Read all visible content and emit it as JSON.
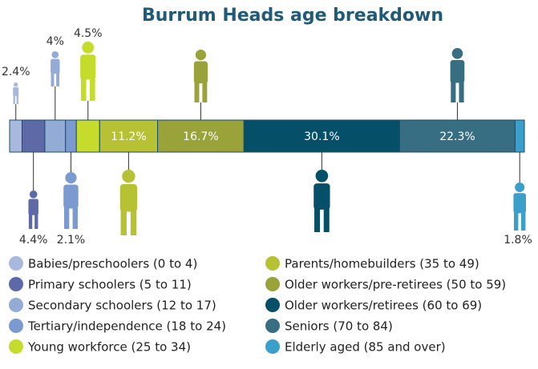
{
  "chart_data": {
    "type": "stacked_bar",
    "title": "Burrum Heads age breakdown",
    "categories": [
      "Babies/preschoolers (0 to 4)",
      "Primary schoolers (5 to 11)",
      "Secondary schoolers (12 to 17)",
      "Tertiary/independence (18 to 24)",
      "Young workforce (25 to 34)",
      "Parents/homebuilders (35 to 49)",
      "Older workers/pre-retirees (50 to 59)",
      "Older workers/retirees (60 to 69)",
      "Seniors (70 to 84)",
      "Elderly aged (85 and over)"
    ],
    "values": [
      2.4,
      4.4,
      4,
      2.1,
      4.5,
      11.2,
      16.7,
      30.1,
      22.3,
      1.8
    ],
    "value_labels": [
      "2.4%",
      "4.4%",
      "4%",
      "2.1%",
      "4.5%",
      "11.2%",
      "16.7%",
      "30.1%",
      "22.3%",
      "1.8%"
    ],
    "colors": [
      "#a9b9dd",
      "#5e6aa8",
      "#93acd6",
      "#7b9bd0",
      "#c5dc2d",
      "#b6c234",
      "#9aa23a",
      "#064f69",
      "#376e82",
      "#3b9fcb"
    ]
  }
}
